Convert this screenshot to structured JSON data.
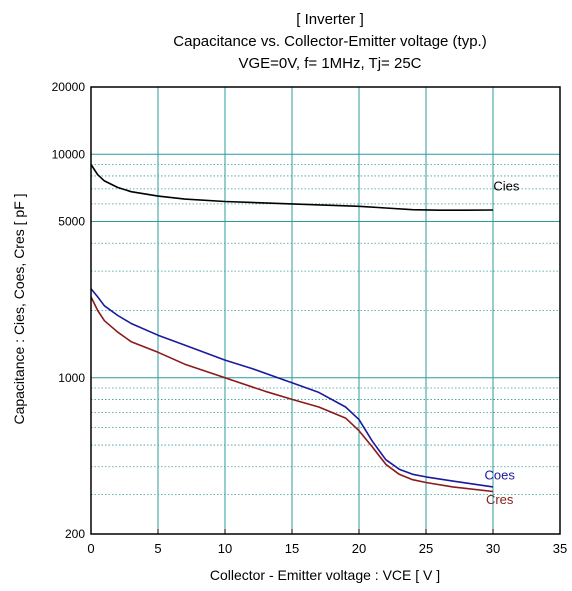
{
  "chart_data": {
    "type": "line",
    "title_lines": [
      "[ Inverter ]",
      "Capacitance  vs.  Collector-Emitter voltage  (typ.)",
      "VGE=0V,  f= 1MHz,  Tj= 25C"
    ],
    "xlabel": "Collector - Emitter voltage  :  VCE  [ V ]",
    "ylabel": "Capacitance  :  Cies, Coes, Cres  [ pF ]",
    "xlim": [
      0,
      35
    ],
    "ylim": [
      200,
      20000
    ],
    "y_scale": "log",
    "x_ticks": [
      0,
      5,
      10,
      15,
      20,
      25,
      30,
      35
    ],
    "x_tick_labels": [
      "0",
      "5",
      "10",
      "15",
      "20",
      "25",
      "30",
      "35"
    ],
    "y_ticks": [
      200,
      1000,
      5000,
      10000,
      20000
    ],
    "y_tick_labels": [
      "200",
      "1000",
      "5000",
      "10000",
      "20000"
    ],
    "grid": true,
    "colors": {
      "grid": "#2e9b9b",
      "minor_grid": "#2e9b9b",
      "axes": "#000000"
    },
    "series": [
      {
        "name": "Cies",
        "color": "#000000",
        "x": [
          0,
          0.5,
          1,
          2,
          3,
          5,
          7,
          10,
          15,
          20,
          22,
          24,
          26,
          28,
          30
        ],
        "y": [
          9000,
          8100,
          7600,
          7100,
          6800,
          6500,
          6300,
          6150,
          6000,
          5850,
          5750,
          5650,
          5620,
          5620,
          5630
        ]
      },
      {
        "name": "Coes",
        "color": "#1a1a9e",
        "x": [
          0,
          0.5,
          1,
          2,
          3,
          5,
          7,
          10,
          12,
          15,
          17,
          19,
          20,
          21,
          22,
          23,
          24,
          25,
          27,
          30
        ],
        "y": [
          2500,
          2300,
          2100,
          1900,
          1750,
          1550,
          1400,
          1200,
          1100,
          950,
          860,
          740,
          650,
          520,
          430,
          390,
          370,
          360,
          345,
          325
        ]
      },
      {
        "name": "Cres",
        "color": "#8b1a1a",
        "x": [
          0,
          0.5,
          1,
          2,
          3,
          5,
          7,
          10,
          13,
          15,
          17,
          19,
          20,
          21,
          22,
          23,
          24,
          25,
          27,
          30
        ],
        "y": [
          2300,
          2000,
          1800,
          1600,
          1450,
          1300,
          1150,
          1000,
          870,
          800,
          740,
          660,
          580,
          490,
          410,
          370,
          350,
          340,
          325,
          310
        ]
      }
    ],
    "series_labels": [
      {
        "text": "Cies",
        "color": "#000000"
      },
      {
        "text": "Coes",
        "color": "#1a1a9e"
      },
      {
        "text": "Cres",
        "color": "#8b1a1a"
      }
    ]
  }
}
